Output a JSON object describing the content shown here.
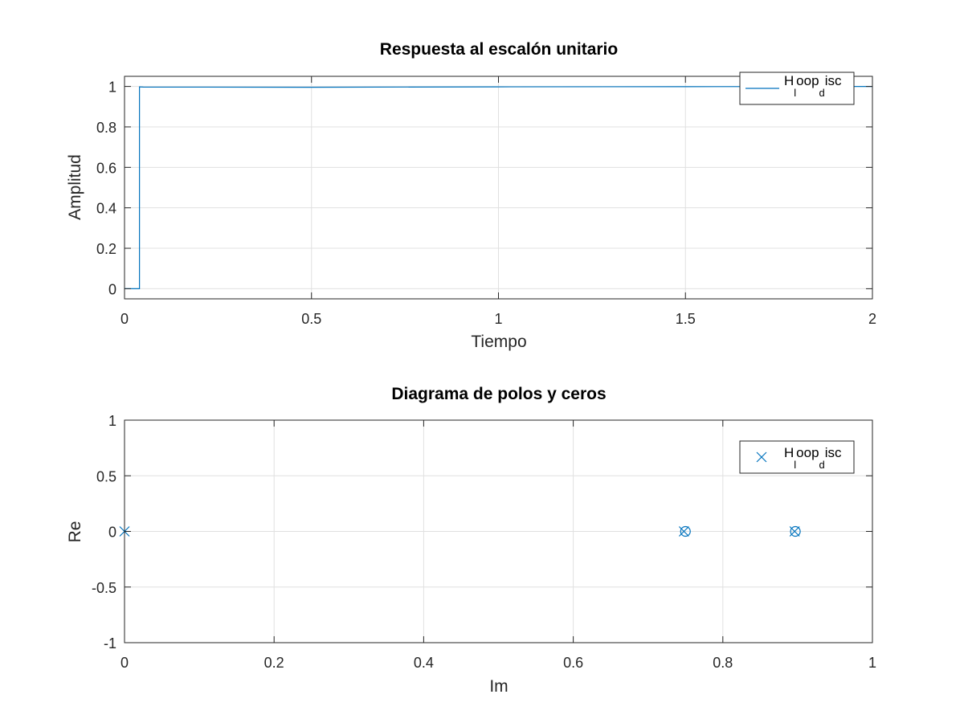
{
  "chart_data": [
    {
      "type": "line",
      "title": "Respuesta al escalón unitario",
      "xlabel": "Tiempo",
      "ylabel": "Amplitud",
      "xlim": [
        0,
        2
      ],
      "ylim": [
        -0.05,
        1.05
      ],
      "xticks": [
        0,
        0.5,
        1,
        1.5,
        2
      ],
      "xtick_labels": [
        "0",
        "0.5",
        "1",
        "1.5",
        "2"
      ],
      "yticks": [
        0,
        0.2,
        0.4,
        0.6,
        0.8,
        1
      ],
      "ytick_labels": [
        "0",
        "0.2",
        "0.4",
        "0.6",
        "0.8",
        "1"
      ],
      "grid": true,
      "legend_position": "top-right",
      "color": "#0072bd",
      "series": [
        {
          "name": "H_loop_disc",
          "legend_main": "H",
          "legend_sub": "l",
          "legend_mid": "oop",
          "legend_sub2": "d",
          "legend_tail": "isc",
          "x": [
            0,
            0.04,
            0.04,
            0.05,
            0.5,
            1,
            1.5,
            2
          ],
          "y": [
            0,
            0,
            0.998,
            0.997,
            0.996,
            0.998,
            0.999,
            1.0
          ]
        }
      ]
    },
    {
      "type": "scatter",
      "title": "Diagrama de polos y ceros",
      "xlabel": "Im",
      "ylabel": "Re",
      "xlim": [
        0,
        1
      ],
      "ylim": [
        -1,
        1
      ],
      "xticks": [
        0,
        0.2,
        0.4,
        0.6,
        0.8,
        1
      ],
      "xtick_labels": [
        "0",
        "0.2",
        "0.4",
        "0.6",
        "0.8",
        "1"
      ],
      "yticks": [
        -1,
        -0.5,
        0,
        0.5,
        1
      ],
      "ytick_labels": [
        "-1",
        "-0.5",
        "0",
        "0.5",
        "1"
      ],
      "grid": true,
      "legend_position": "top-right",
      "color": "#0072bd",
      "series": [
        {
          "name": "H_loop_disc",
          "legend_main": "H",
          "legend_sub": "l",
          "legend_mid": "oop",
          "legend_sub2": "d",
          "legend_tail": "isc",
          "marker": "x",
          "x": [
            0,
            0.748,
            0.896
          ],
          "y": [
            0,
            0,
            0
          ]
        },
        {
          "marker": "o",
          "x": [
            0.75,
            0.897
          ],
          "y": [
            0,
            0
          ]
        }
      ]
    }
  ]
}
